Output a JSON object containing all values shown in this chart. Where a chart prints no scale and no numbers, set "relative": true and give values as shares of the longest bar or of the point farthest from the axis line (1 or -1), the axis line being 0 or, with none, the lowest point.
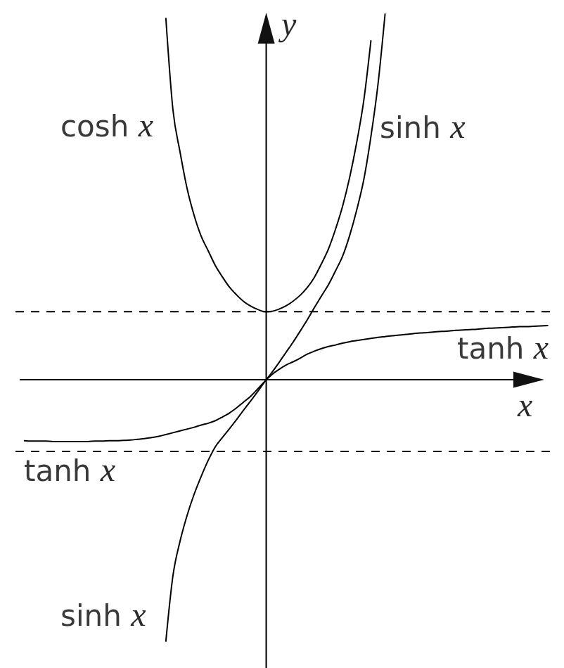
{
  "chart_data": {
    "type": "line",
    "relative": true,
    "xlabel": "x",
    "ylabel": "y",
    "line_style": "solid",
    "categories": [
      null,
      null,
      null,
      null,
      null,
      null,
      null,
      null,
      null,
      null,
      null,
      null,
      null,
      null,
      null,
      null,
      null,
      null,
      null,
      null,
      null,
      null,
      null,
      null,
      null,
      null,
      null,
      null,
      null,
      null,
      null,
      null,
      null,
      null,
      null,
      null,
      null,
      null,
      null,
      null,
      null,
      null,
      null,
      null,
      null,
      null,
      null,
      null,
      null,
      null,
      null,
      null,
      null,
      null,
      null,
      null,
      null,
      null,
      null,
      null,
      null,
      null,
      null,
      null,
      null,
      null,
      null,
      null,
      null,
      null,
      null,
      null,
      null,
      null,
      null
    ],
    "series": [
      {
        "name": "cosh x",
        "color": "#000000",
        "values": [
          null,
          null,
          null,
          null,
          null,
          null,
          null,
          null,
          null,
          null,
          null,
          null,
          null,
          null,
          null,
          null,
          null,
          null,
          null,
          null,
          0.988,
          0.738,
          0.623,
          0.523,
          0.449,
          0.392,
          0.352,
          0.312,
          0.281,
          0.253,
          0.232,
          0.214,
          0.201,
          0.192,
          0.186,
          0.187,
          0.193,
          0.202,
          0.215,
          0.231,
          0.252,
          0.28,
          0.317,
          0.358,
          0.412,
          0.475,
          0.554,
          0.65,
          0.765,
          0.927,
          null,
          null,
          null,
          null,
          null,
          null,
          null,
          null,
          null,
          null,
          null,
          null,
          null,
          null,
          null,
          null,
          null,
          null,
          null,
          null,
          null,
          null,
          null,
          null,
          null
        ]
      },
      {
        "name": "sinh x",
        "color": "#000000",
        "values": [
          null,
          null,
          null,
          null,
          null,
          null,
          null,
          null,
          null,
          null,
          null,
          null,
          null,
          null,
          null,
          null,
          null,
          null,
          null,
          null,
          -0.715,
          -0.536,
          -0.442,
          -0.371,
          -0.313,
          -0.264,
          -0.22,
          -0.183,
          -0.158,
          -0.134,
          -0.109,
          -0.083,
          -0.058,
          -0.032,
          -0.005,
          0.02,
          0.047,
          0.075,
          0.103,
          0.133,
          0.164,
          0.197,
          0.229,
          0.26,
          0.298,
          0.338,
          0.395,
          0.465,
          0.548,
          0.665,
          0.808,
          1,
          null,
          null,
          null,
          null,
          null,
          null,
          null,
          null,
          null,
          null,
          null,
          null,
          null,
          null,
          null,
          null,
          null,
          null,
          null,
          null,
          null,
          null,
          null
        ]
      },
      {
        "name": "tanh x",
        "color": "#000000",
        "values": [
          -0.167,
          -0.168,
          -0.168,
          -0.168,
          -0.169,
          -0.169,
          -0.169,
          -0.169,
          -0.169,
          -0.169,
          -0.168,
          -0.168,
          -0.167,
          -0.167,
          -0.166,
          -0.165,
          -0.163,
          -0.161,
          -0.158,
          -0.155,
          -0.15,
          -0.145,
          -0.14,
          -0.135,
          -0.13,
          -0.124,
          -0.119,
          -0.112,
          -0.102,
          -0.091,
          -0.077,
          -0.061,
          -0.045,
          -0.025,
          -0.004,
          0.014,
          0.028,
          0.04,
          0.049,
          0.059,
          0.07,
          0.078,
          0.085,
          0.091,
          0.095,
          0.1,
          0.104,
          0.107,
          0.11,
          0.113,
          0.116,
          0.118,
          0.12,
          0.122,
          0.124,
          0.126,
          0.128,
          0.129,
          0.131,
          0.132,
          0.133,
          0.135,
          0.136,
          0.137,
          0.138,
          0.14,
          0.141,
          0.142,
          0.143,
          0.144,
          0.145,
          0.145,
          0.146,
          0.147,
          0.148
        ]
      }
    ],
    "ref_lines": [
      {
        "axis": "y",
        "value": 0.186,
        "color": "#000000",
        "line_style": "dashed"
      },
      {
        "axis": "y",
        "value": -0.196,
        "color": "#000000",
        "line_style": "dashed"
      }
    ]
  }
}
